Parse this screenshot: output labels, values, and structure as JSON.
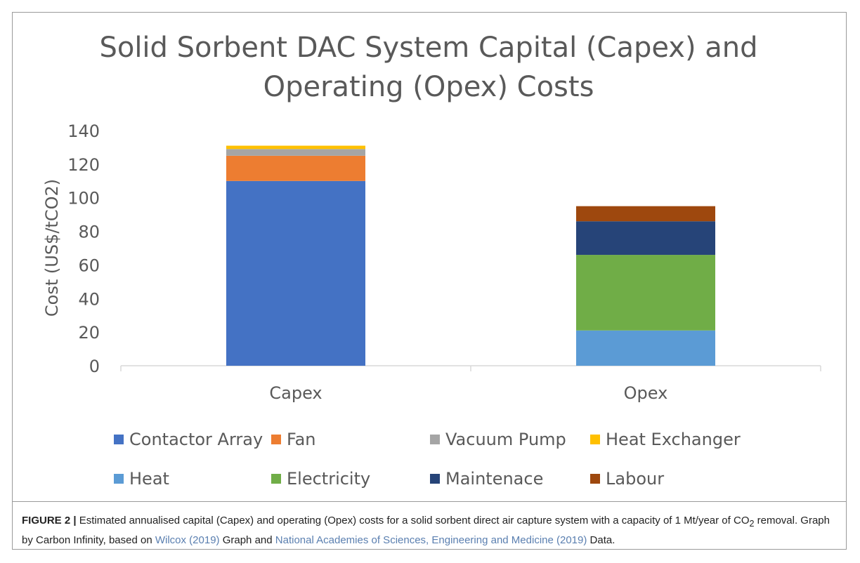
{
  "chart_data": {
    "type": "bar",
    "stacked": true,
    "title": "Solid Sorbent DAC System Capital (Capex) and Operating (Opex) Costs",
    "xlabel": "",
    "ylabel": "Cost (US$/tCO2)",
    "ylim": [
      0,
      140
    ],
    "yticks": [
      0,
      20,
      40,
      60,
      80,
      100,
      120,
      140
    ],
    "categories": [
      "Capex",
      "Opex"
    ],
    "grid": false,
    "legend_position": "bottom",
    "series": [
      {
        "name": "Contactor Array",
        "color": "#4472c4",
        "values": [
          110,
          0
        ]
      },
      {
        "name": "Fan",
        "color": "#ed7d31",
        "values": [
          15,
          0
        ]
      },
      {
        "name": "Vacuum Pump",
        "color": "#a5a5a5",
        "values": [
          4,
          0
        ]
      },
      {
        "name": "Heat Exchanger",
        "color": "#ffc000",
        "values": [
          2,
          0
        ]
      },
      {
        "name": "Heat",
        "color": "#5b9bd5",
        "values": [
          0,
          21
        ]
      },
      {
        "name": "Electricity",
        "color": "#70ad47",
        "values": [
          0,
          45
        ]
      },
      {
        "name": "Maintenace",
        "color": "#264478",
        "values": [
          0,
          20
        ]
      },
      {
        "name": "Labour",
        "color": "#9e480e",
        "values": [
          0,
          9
        ]
      }
    ]
  },
  "caption": {
    "label": "FIGURE 2 |",
    "text_1": " Estimated annualised capital (Capex) and operating (Opex) costs for a solid sorbent direct air capture system with a capacity of 1 Mt/year of CO",
    "subscript": "2",
    "text_2": " removal. Graph by Carbon Infinity, based on ",
    "ref_1": "Wilcox (2019)",
    "text_3": " Graph and ",
    "ref_2": "National Academies of Sciences, Engineering and Medicine (2019)",
    "text_4": " Data."
  }
}
